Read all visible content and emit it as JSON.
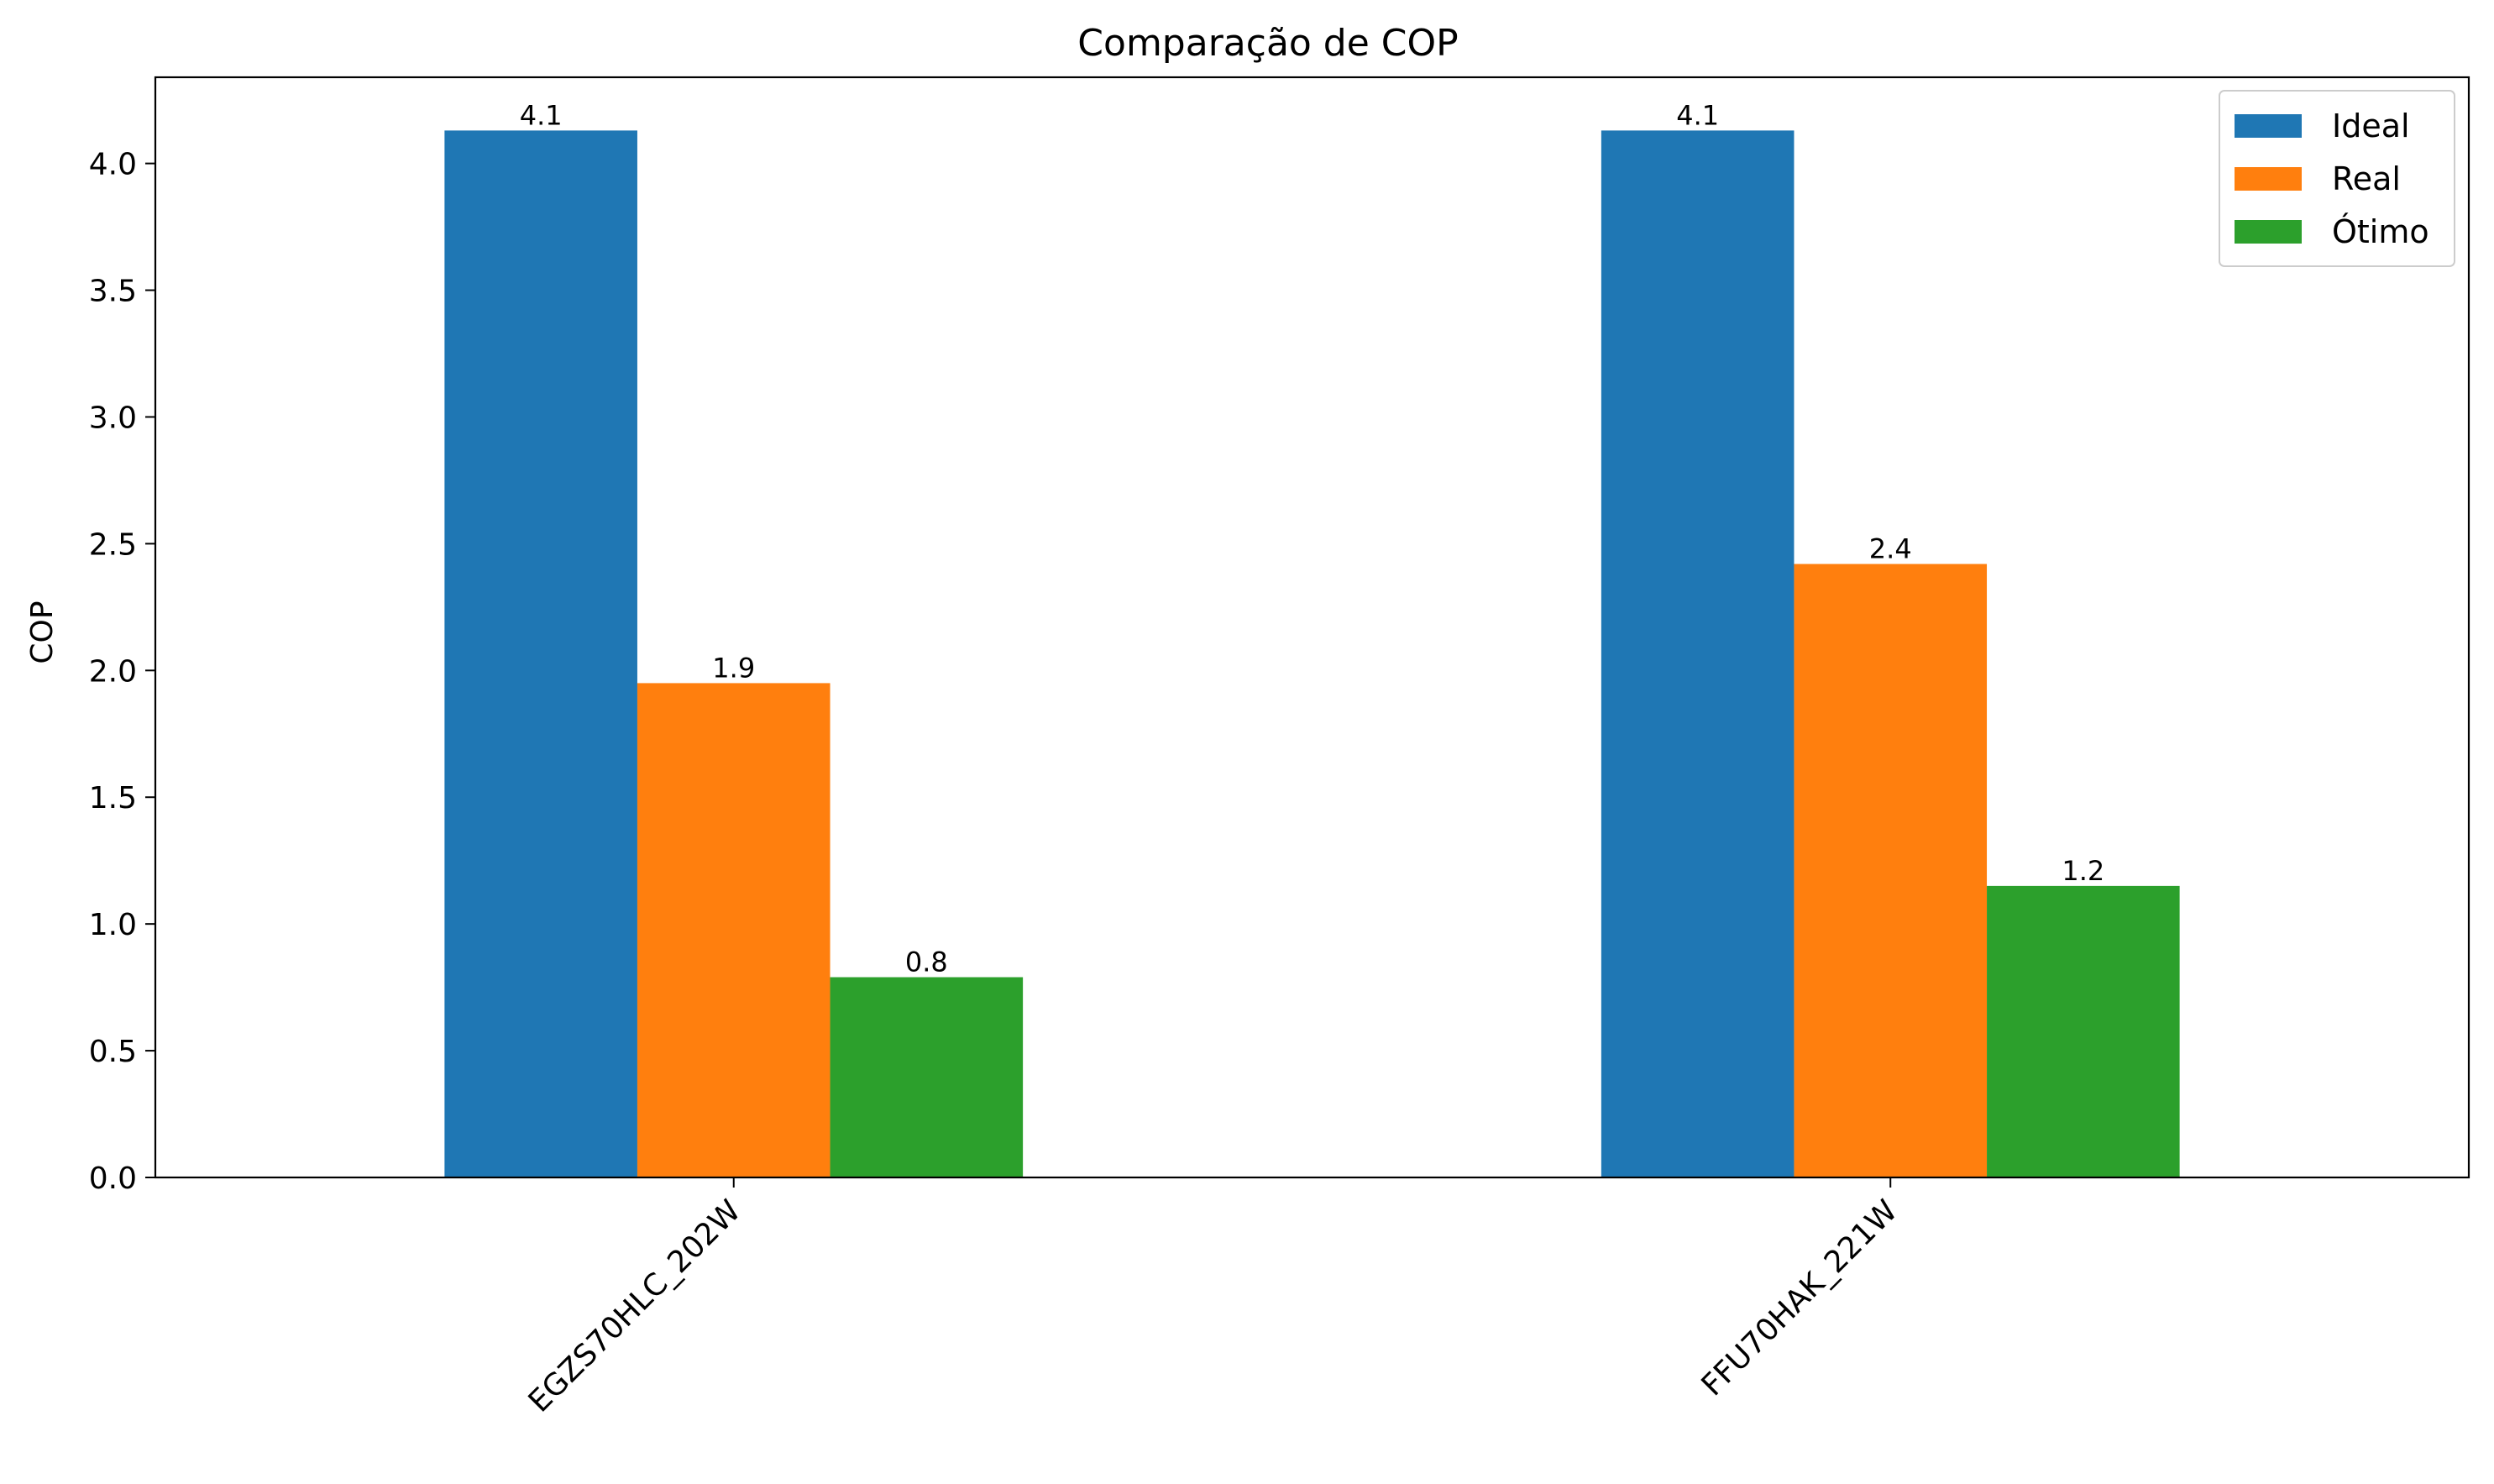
{
  "chart_data": {
    "type": "bar",
    "title": "Comparação de COP",
    "xlabel": "",
    "ylabel": "COP",
    "categories": [
      "EGZS70HLC_202W",
      "FFU70HAK_221W"
    ],
    "series": [
      {
        "name": "Ideal",
        "color": "#1f77b4",
        "values": [
          4.13,
          4.13
        ],
        "labels": [
          "4.1",
          "4.1"
        ]
      },
      {
        "name": "Real",
        "color": "#ff7f0e",
        "values": [
          1.95,
          2.42
        ],
        "labels": [
          "1.9",
          "2.4"
        ]
      },
      {
        "name": "Ótimo",
        "color": "#2ca02c",
        "values": [
          0.79,
          1.15
        ],
        "labels": [
          "0.8",
          "1.2"
        ]
      }
    ],
    "ylim": [
      0,
      4.34
    ],
    "yticks": [
      "0.0",
      "0.5",
      "1.0",
      "1.5",
      "2.0",
      "2.5",
      "3.0",
      "3.5",
      "4.0"
    ],
    "ytick_values": [
      0,
      0.5,
      1.0,
      1.5,
      2.0,
      2.5,
      3.0,
      3.5,
      4.0
    ],
    "grid": false,
    "legend_position": "top-right",
    "xtick_rotation": "45"
  }
}
